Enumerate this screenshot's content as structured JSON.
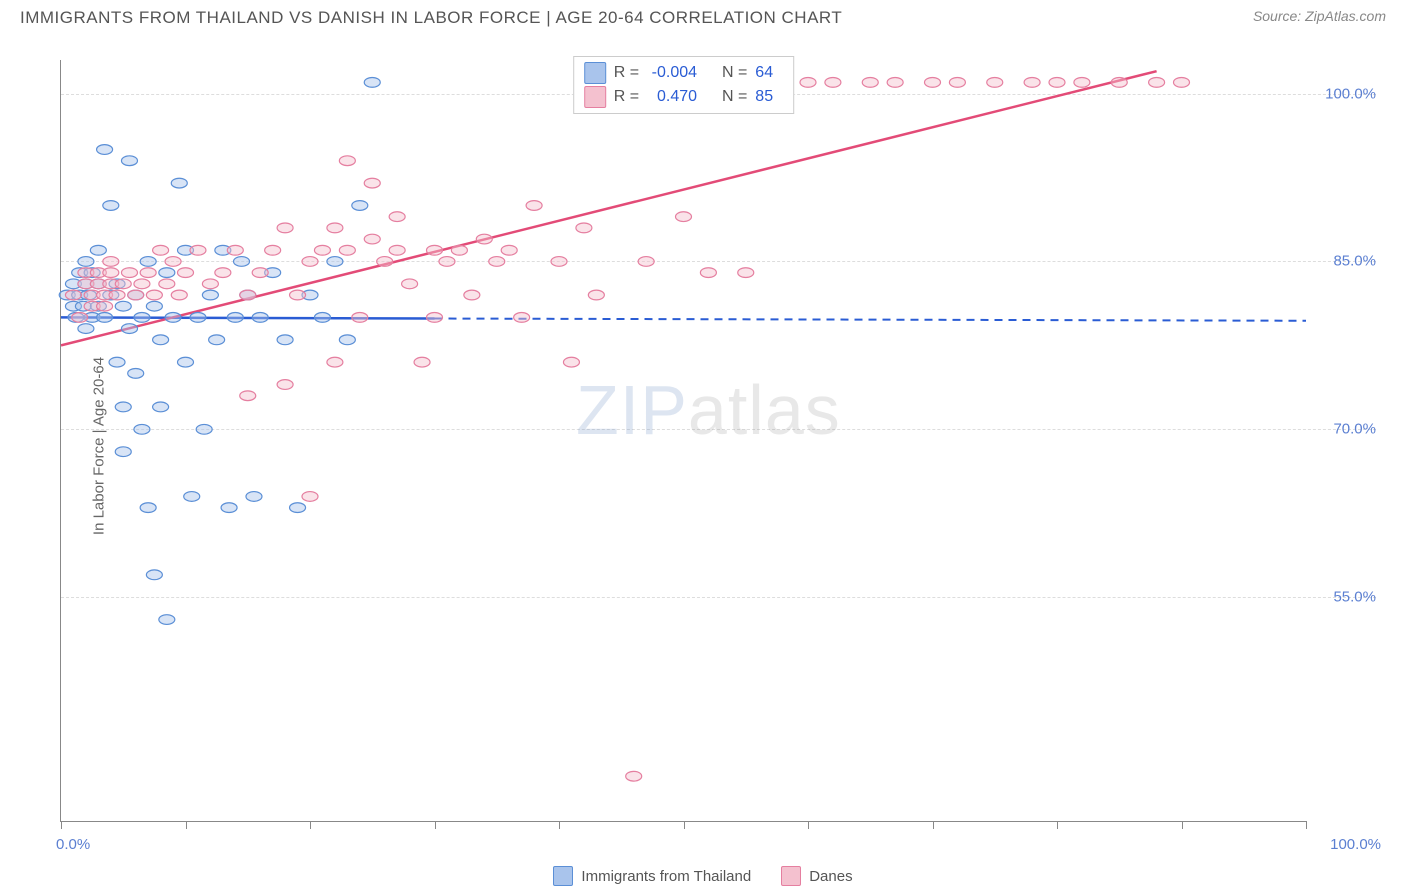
{
  "title": "IMMIGRANTS FROM THAILAND VS DANISH IN LABOR FORCE | AGE 20-64 CORRELATION CHART",
  "source": "Source: ZipAtlas.com",
  "ylabel": "In Labor Force | Age 20-64",
  "watermark_1": "ZIP",
  "watermark_2": "atlas",
  "chart": {
    "type": "scatter",
    "background_color": "#ffffff",
    "grid_color": "#dddddd",
    "axis_color": "#888888",
    "label_color": "#5b7fd1",
    "xlim": [
      0,
      100
    ],
    "ylim": [
      35,
      103
    ],
    "yticks": [
      {
        "v": 55,
        "label": "55.0%"
      },
      {
        "v": 70,
        "label": "70.0%"
      },
      {
        "v": 85,
        "label": "85.0%"
      },
      {
        "v": 100,
        "label": "100.0%"
      }
    ],
    "xticks_minor": [
      0,
      10,
      20,
      30,
      40,
      50,
      60,
      70,
      80,
      90,
      100
    ],
    "xaxis_left": "0.0%",
    "xaxis_right": "100.0%",
    "marker_radius": 8,
    "marker_opacity": 0.45,
    "series": [
      {
        "name": "Immigrants from Thailand",
        "color_fill": "#a9c4ec",
        "color_stroke": "#5b8fd6",
        "R": "-0.004",
        "N": "64",
        "trend": {
          "x1": 0,
          "y1": 80.0,
          "x2": 30,
          "y2": 79.9,
          "extend_to": 100,
          "extend_y": 79.7,
          "dash": true,
          "color": "#2a5cd4",
          "width": 2.5
        },
        "points": [
          [
            0.5,
            82
          ],
          [
            1,
            83
          ],
          [
            1,
            81
          ],
          [
            1.2,
            80
          ],
          [
            1.5,
            84
          ],
          [
            1.5,
            82
          ],
          [
            1.8,
            81
          ],
          [
            2,
            83
          ],
          [
            2,
            85
          ],
          [
            2,
            79
          ],
          [
            2.2,
            82
          ],
          [
            2.5,
            80
          ],
          [
            2.5,
            84
          ],
          [
            3,
            83
          ],
          [
            3,
            81
          ],
          [
            3,
            86
          ],
          [
            3.5,
            80
          ],
          [
            3.5,
            95
          ],
          [
            4,
            82
          ],
          [
            4,
            90
          ],
          [
            4.5,
            83
          ],
          [
            4.5,
            76
          ],
          [
            5,
            81
          ],
          [
            5,
            72
          ],
          [
            5,
            68
          ],
          [
            5.5,
            79
          ],
          [
            5.5,
            94
          ],
          [
            6,
            82
          ],
          [
            6,
            75
          ],
          [
            6.5,
            80
          ],
          [
            6.5,
            70
          ],
          [
            7,
            85
          ],
          [
            7,
            63
          ],
          [
            7.5,
            81
          ],
          [
            7.5,
            57
          ],
          [
            8,
            78
          ],
          [
            8,
            72
          ],
          [
            8.5,
            84
          ],
          [
            8.5,
            53
          ],
          [
            9,
            80
          ],
          [
            9.5,
            92
          ],
          [
            10,
            86
          ],
          [
            10,
            76
          ],
          [
            10.5,
            64
          ],
          [
            11,
            80
          ],
          [
            11.5,
            70
          ],
          [
            12,
            82
          ],
          [
            12.5,
            78
          ],
          [
            13,
            86
          ],
          [
            13.5,
            63
          ],
          [
            14,
            80
          ],
          [
            14.5,
            85
          ],
          [
            15,
            82
          ],
          [
            15.5,
            64
          ],
          [
            16,
            80
          ],
          [
            17,
            84
          ],
          [
            18,
            78
          ],
          [
            19,
            63
          ],
          [
            20,
            82
          ],
          [
            21,
            80
          ],
          [
            22,
            85
          ],
          [
            23,
            78
          ],
          [
            24,
            90
          ],
          [
            25,
            101
          ]
        ]
      },
      {
        "name": "Danes",
        "color_fill": "#f4c1cf",
        "color_stroke": "#e57fa0",
        "R": "0.470",
        "N": "85",
        "trend": {
          "x1": 0,
          "y1": 77.5,
          "x2": 88,
          "y2": 102,
          "extend_to": 100,
          "extend_y": 105,
          "dash": false,
          "color": "#e34b77",
          "width": 2.5
        },
        "points": [
          [
            1,
            82
          ],
          [
            1.5,
            80
          ],
          [
            2,
            84
          ],
          [
            2,
            83
          ],
          [
            2.5,
            81
          ],
          [
            2.5,
            82
          ],
          [
            3,
            83
          ],
          [
            3,
            84
          ],
          [
            3.5,
            82
          ],
          [
            3.5,
            81
          ],
          [
            4,
            83
          ],
          [
            4,
            84
          ],
          [
            4,
            85
          ],
          [
            4.5,
            82
          ],
          [
            5,
            83
          ],
          [
            5.5,
            84
          ],
          [
            6,
            82
          ],
          [
            6.5,
            83
          ],
          [
            7,
            84
          ],
          [
            7.5,
            82
          ],
          [
            8,
            86
          ],
          [
            8.5,
            83
          ],
          [
            9,
            85
          ],
          [
            9.5,
            82
          ],
          [
            10,
            84
          ],
          [
            11,
            86
          ],
          [
            12,
            83
          ],
          [
            13,
            84
          ],
          [
            14,
            86
          ],
          [
            15,
            82
          ],
          [
            15,
            73
          ],
          [
            16,
            84
          ],
          [
            17,
            86
          ],
          [
            18,
            88
          ],
          [
            18,
            74
          ],
          [
            19,
            82
          ],
          [
            20,
            85
          ],
          [
            20,
            64
          ],
          [
            21,
            86
          ],
          [
            22,
            88
          ],
          [
            22,
            76
          ],
          [
            23,
            86
          ],
          [
            23,
            94
          ],
          [
            24,
            80
          ],
          [
            25,
            87
          ],
          [
            25,
            92
          ],
          [
            26,
            85
          ],
          [
            27,
            86
          ],
          [
            27,
            89
          ],
          [
            28,
            83
          ],
          [
            29,
            76
          ],
          [
            30,
            86
          ],
          [
            30,
            80
          ],
          [
            31,
            85
          ],
          [
            32,
            86
          ],
          [
            33,
            82
          ],
          [
            34,
            87
          ],
          [
            35,
            85
          ],
          [
            36,
            86
          ],
          [
            37,
            80
          ],
          [
            38,
            90
          ],
          [
            40,
            85
          ],
          [
            41,
            76
          ],
          [
            42,
            88
          ],
          [
            43,
            82
          ],
          [
            45,
            101
          ],
          [
            46,
            39
          ],
          [
            47,
            85
          ],
          [
            50,
            89
          ],
          [
            52,
            84
          ],
          [
            55,
            84
          ],
          [
            58,
            101
          ],
          [
            60,
            101
          ],
          [
            62,
            101
          ],
          [
            65,
            101
          ],
          [
            67,
            101
          ],
          [
            70,
            101
          ],
          [
            72,
            101
          ],
          [
            75,
            101
          ],
          [
            78,
            101
          ],
          [
            80,
            101
          ],
          [
            82,
            101
          ],
          [
            85,
            101
          ],
          [
            88,
            101
          ],
          [
            90,
            101
          ]
        ]
      }
    ]
  },
  "legend_labels": {
    "R": "R =",
    "N": "N ="
  }
}
